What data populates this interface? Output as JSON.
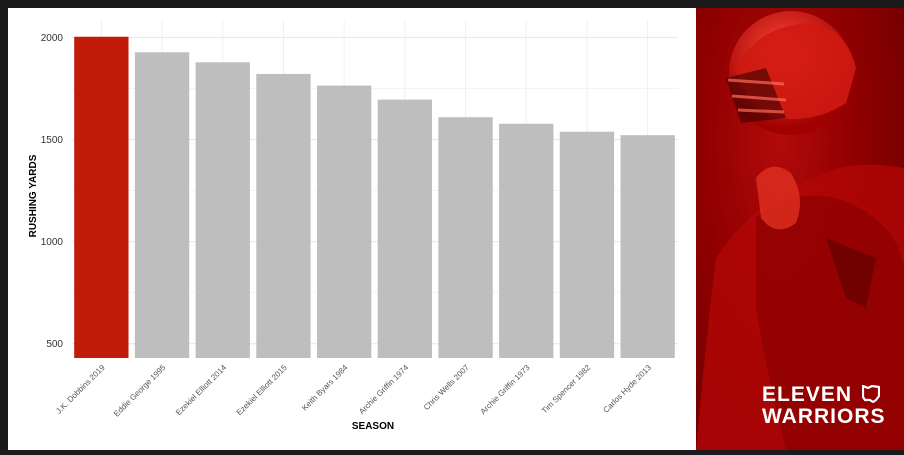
{
  "chart_data": {
    "type": "bar",
    "categories": [
      "J.K. Dobbins 2019",
      "Eddie George 1995",
      "Ezekiel Elliott 2014",
      "Ezekiel Elliott 2015",
      "Keith Byars 1984",
      "Archie Griffin 1974",
      "Chris Wells 2007",
      "Archie Griffin 1973",
      "Tim Spencer 1982",
      "Carlos Hyde 2013"
    ],
    "values": [
      2003,
      1927,
      1878,
      1821,
      1764,
      1695,
      1609,
      1577,
      1538,
      1521
    ],
    "xlabel": "SEASON",
    "ylabel": "RUSHING YARDS",
    "ylim": [
      430,
      2085
    ],
    "yticks": [
      500,
      1000,
      1500,
      2000
    ],
    "grid": true,
    "highlight_color": "#c11b0a",
    "bar_color": "#bebebe"
  },
  "brand": {
    "line1": "ELEVEN",
    "line2": "WARRIORS",
    "icon": "ohio-state-outline-icon"
  }
}
